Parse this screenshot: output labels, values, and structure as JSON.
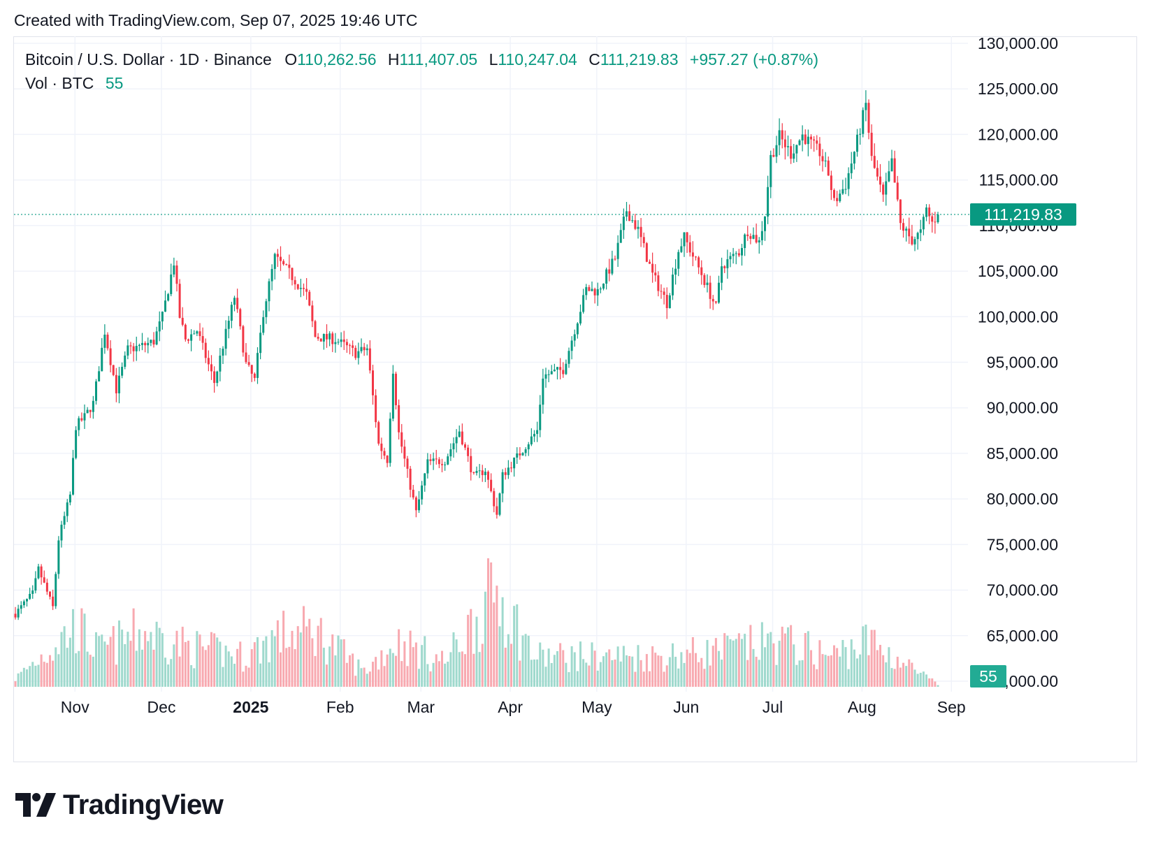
{
  "header": {
    "created_text": "Created with TradingView.com, Sep 07, 2025 19:46 UTC"
  },
  "legend": {
    "symbol": "Bitcoin / U.S. Dollar · 1D · Binance",
    "o_label": "O",
    "o_value": "110,262.56",
    "h_label": "H",
    "h_value": "111,407.05",
    "l_label": "L",
    "l_value": "110,247.04",
    "c_label": "C",
    "c_value": "111,219.83",
    "change": "+957.27 (+0.87%)",
    "vol_label": "Vol · BTC",
    "vol_value": "55"
  },
  "colors": {
    "up": "#089981",
    "down": "#f23645",
    "grid": "#f0f3fa",
    "text": "#131722"
  },
  "chart_data": {
    "type": "candlestick",
    "symbol": "BTC/USD",
    "interval": "1D",
    "y_axis_labels": [
      "130,000.00",
      "125,000.00",
      "120,000.00",
      "115,000.00",
      "110,000.00",
      "105,000.00",
      "100,000.00",
      "95,000.00",
      "90,000.00",
      "85,000.00",
      "80,000.00",
      "75,000.00",
      "70,000.00",
      "65,000.00",
      "60,000.00"
    ],
    "ylim": [
      60000,
      130000
    ],
    "x_axis_labels": [
      {
        "label": "Nov",
        "date": "2024-11-01",
        "bold": false
      },
      {
        "label": "Dec",
        "date": "2024-12-01",
        "bold": false
      },
      {
        "label": "2025",
        "date": "2025-01-01",
        "bold": true
      },
      {
        "label": "Feb",
        "date": "2025-02-01",
        "bold": false
      },
      {
        "label": "Mar",
        "date": "2025-03-01",
        "bold": false
      },
      {
        "label": "Apr",
        "date": "2025-04-01",
        "bold": false
      },
      {
        "label": "May",
        "date": "2025-05-01",
        "bold": false
      },
      {
        "label": "Jun",
        "date": "2025-06-01",
        "bold": false
      },
      {
        "label": "Jul",
        "date": "2025-07-01",
        "bold": false
      },
      {
        "label": "Aug",
        "date": "2025-08-01",
        "bold": false
      },
      {
        "label": "Sep",
        "date": "2025-09-01",
        "bold": false
      }
    ],
    "x_range": [
      "2024-10-22",
      "2025-09-07"
    ],
    "last_price": 111219.83,
    "last_price_label": "111,219.83",
    "last_volume_label": "55",
    "close_path": [
      [
        "2024-10-22",
        67400
      ],
      [
        "2024-10-28",
        69600
      ],
      [
        "2024-10-30",
        72300
      ],
      [
        "2024-11-04",
        68100
      ],
      [
        "2024-11-06",
        75600
      ],
      [
        "2024-11-10",
        80400
      ],
      [
        "2024-11-12",
        88000
      ],
      [
        "2024-11-15",
        89000
      ],
      [
        "2024-11-18",
        90500
      ],
      [
        "2024-11-22",
        98400
      ],
      [
        "2024-11-26",
        92000
      ],
      [
        "2024-11-30",
        96400
      ],
      [
        "2024-12-05",
        96800
      ],
      [
        "2024-12-09",
        97300
      ],
      [
        "2024-12-12",
        100000
      ],
      [
        "2024-12-16",
        106000
      ],
      [
        "2024-12-18",
        100000
      ],
      [
        "2024-12-20",
        97500
      ],
      [
        "2024-12-24",
        98500
      ],
      [
        "2024-12-30",
        92800
      ],
      [
        "2025-01-06",
        102200
      ],
      [
        "2025-01-10",
        94800
      ],
      [
        "2025-01-13",
        93000
      ],
      [
        "2025-01-16",
        100500
      ],
      [
        "2025-01-20",
        106500
      ],
      [
        "2025-01-25",
        104800
      ],
      [
        "2025-01-31",
        102400
      ],
      [
        "2025-02-03",
        97800
      ],
      [
        "2025-02-10",
        97500
      ],
      [
        "2025-02-17",
        96000
      ],
      [
        "2025-02-21",
        96500
      ],
      [
        "2025-02-25",
        86000
      ],
      [
        "2025-02-28",
        84300
      ],
      [
        "2025-03-02",
        94200
      ],
      [
        "2025-03-04",
        87200
      ],
      [
        "2025-03-10",
        78500
      ],
      [
        "2025-03-14",
        84000
      ],
      [
        "2025-03-20",
        84200
      ],
      [
        "2025-03-25",
        87500
      ],
      [
        "2025-03-30",
        82400
      ],
      [
        "2025-04-03",
        83200
      ],
      [
        "2025-04-07",
        78300
      ],
      [
        "2025-04-09",
        82600
      ],
      [
        "2025-04-14",
        84600
      ],
      [
        "2025-04-21",
        87500
      ],
      [
        "2025-04-23",
        93500
      ],
      [
        "2025-04-30",
        94200
      ],
      [
        "2025-05-08",
        103000
      ],
      [
        "2025-05-12",
        102800
      ],
      [
        "2025-05-18",
        106400
      ],
      [
        "2025-05-22",
        111700
      ],
      [
        "2025-05-26",
        109500
      ],
      [
        "2025-05-31",
        104600
      ],
      [
        "2025-06-05",
        101500
      ],
      [
        "2025-06-09",
        107300
      ],
      [
        "2025-06-11",
        108700
      ],
      [
        "2025-06-17",
        104700
      ],
      [
        "2025-06-22",
        101000
      ],
      [
        "2025-06-24",
        105600
      ],
      [
        "2025-06-30",
        107100
      ],
      [
        "2025-07-03",
        109500
      ],
      [
        "2025-07-07",
        108200
      ],
      [
        "2025-07-09",
        111300
      ],
      [
        "2025-07-11",
        117500
      ],
      [
        "2025-07-14",
        119800
      ],
      [
        "2025-07-18",
        117900
      ],
      [
        "2025-07-22",
        119900
      ],
      [
        "2025-07-28",
        118000
      ],
      [
        "2025-07-31",
        115700
      ],
      [
        "2025-08-02",
        112500
      ],
      [
        "2025-08-06",
        114500
      ],
      [
        "2025-08-10",
        119300
      ],
      [
        "2025-08-13",
        123300
      ],
      [
        "2025-08-15",
        117300
      ],
      [
        "2025-08-19",
        113000
      ],
      [
        "2025-08-22",
        116900
      ],
      [
        "2025-08-25",
        110100
      ],
      [
        "2025-08-29",
        108400
      ],
      [
        "2025-09-01",
        109200
      ],
      [
        "2025-09-03",
        111700
      ],
      [
        "2025-09-05",
        110300
      ],
      [
        "2025-09-07",
        111219.83
      ]
    ],
    "volume_path": [
      [
        "2024-10-22",
        0.08
      ],
      [
        "2024-11-06",
        0.45
      ],
      [
        "2024-11-12",
        0.6
      ],
      [
        "2024-11-20",
        0.35
      ],
      [
        "2024-12-05",
        0.55
      ],
      [
        "2024-12-20",
        0.4
      ],
      [
        "2025-01-10",
        0.3
      ],
      [
        "2025-01-20",
        0.5
      ],
      [
        "2025-02-03",
        0.55
      ],
      [
        "2025-02-20",
        0.15
      ],
      [
        "2025-03-03",
        0.45
      ],
      [
        "2025-03-20",
        0.25
      ],
      [
        "2025-04-07",
        0.95
      ],
      [
        "2025-04-20",
        0.3
      ],
      [
        "2025-05-10",
        0.3
      ],
      [
        "2025-06-01",
        0.3
      ],
      [
        "2025-06-22",
        0.35
      ],
      [
        "2025-07-14",
        0.45
      ],
      [
        "2025-08-01",
        0.3
      ],
      [
        "2025-08-14",
        0.45
      ],
      [
        "2025-09-07",
        0.02
      ]
    ]
  },
  "branding": {
    "logo_text": "TradingView"
  }
}
